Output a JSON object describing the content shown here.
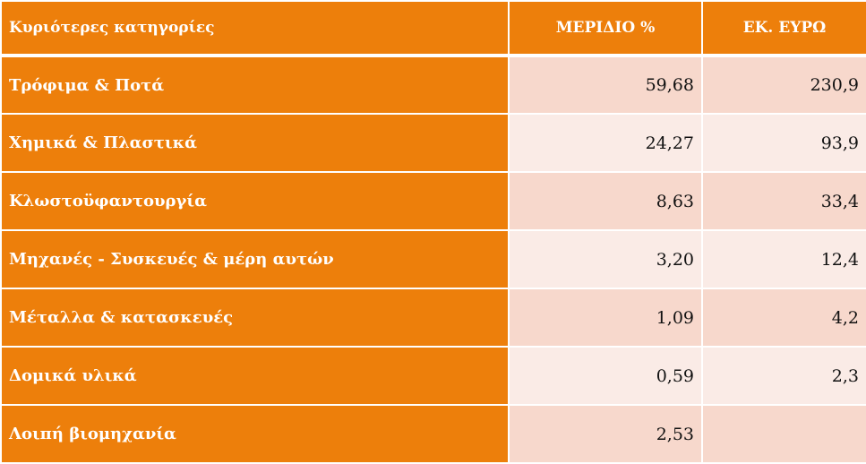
{
  "header": {
    "category": "Κυριότερες κατηγορίες",
    "share": "ΜΕΡΙΔΙΟ %",
    "amount": "ΕΚ. ΕΥΡΩ"
  },
  "colors": {
    "accent": "#ED7F0B",
    "row_dark": "#F7D8CC",
    "row_light": "#FAEBE6"
  },
  "rows": [
    {
      "category": "Τρόφιμα & Ποτά",
      "share": "59,68",
      "amount": "230,9"
    },
    {
      "category": "Χημικά & Πλαστικά",
      "share": "24,27",
      "amount": "93,9"
    },
    {
      "category": "Κλωστοϋφαντουργία",
      "share": "8,63",
      "amount": "33,4"
    },
    {
      "category": "Μηχανές - Συσκευές & μέρη αυτών",
      "share": "3,20",
      "amount": "12,4"
    },
    {
      "category": "Μέταλλα & κατασκευές",
      "share": "1,09",
      "amount": "4,2"
    },
    {
      "category": "Δομικά υλικά",
      "share": "0,59",
      "amount": "2,3"
    },
    {
      "category": "Λοιπή βιομηχανία",
      "share": "2,53",
      "amount": ""
    }
  ]
}
